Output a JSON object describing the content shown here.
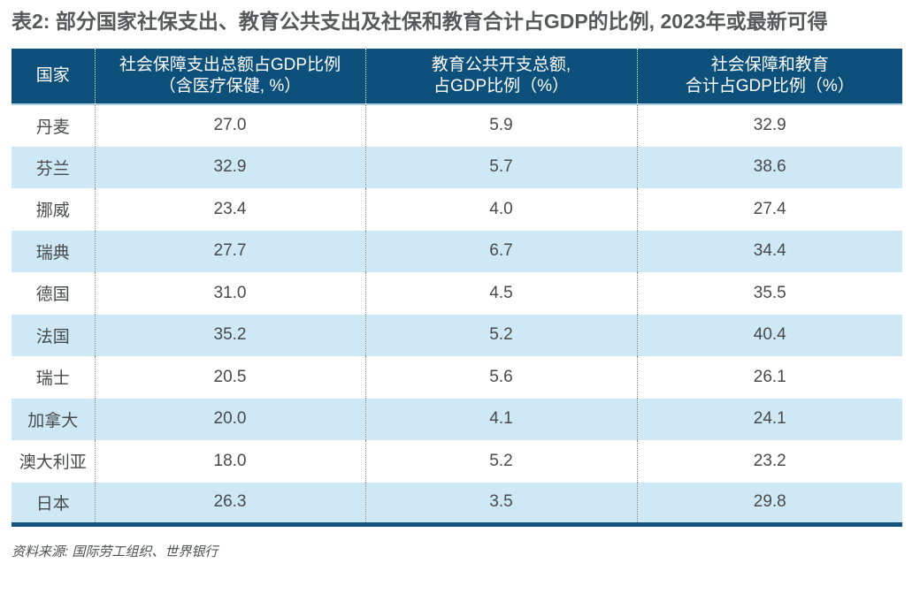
{
  "title": "表2: 部分国家社保支出、教育公共支出及社保和教育合计占GDP的比例, 2023年或最新可得",
  "source_note": "资料来源: 国际劳工组织、世界银行",
  "colors": {
    "header_bg": "#0E507C",
    "header_text": "#FFFFFF",
    "row_alt_bg": "#CEE9F5",
    "row_bg": "#FFFFFF",
    "table_bottom_border": "#15537F",
    "header_bottom_line": "#AFCFE1",
    "title_text": "#57585A",
    "body_text": "#48494B",
    "source_text": "#4E4F51",
    "divider_dotted": "#8C8C8C"
  },
  "table": {
    "headers": [
      {
        "line1": "国家",
        "line2": ""
      },
      {
        "line1": "社会保障支出总额占GDP比例",
        "line2": "（含医疗保健, %）"
      },
      {
        "line1": "教育公共开支总额,",
        "line2": "占GDP比例（%）"
      },
      {
        "line1": "社会保障和教育",
        "line2": "合计占GDP比例（%）"
      }
    ],
    "rows": [
      {
        "country": "丹麦",
        "v1": "27.0",
        "v2": "5.9",
        "v3": "32.9"
      },
      {
        "country": "芬兰",
        "v1": "32.9",
        "v2": "5.7",
        "v3": "38.6"
      },
      {
        "country": "挪威",
        "v1": "23.4",
        "v2": "4.0",
        "v3": "27.4"
      },
      {
        "country": "瑞典",
        "v1": "27.7",
        "v2": "6.7",
        "v3": "34.4"
      },
      {
        "country": "德国",
        "v1": "31.0",
        "v2": "4.5",
        "v3": "35.5"
      },
      {
        "country": "法国",
        "v1": "35.2",
        "v2": "5.2",
        "v3": "40.4"
      },
      {
        "country": "瑞士",
        "v1": "20.5",
        "v2": "5.6",
        "v3": "26.1"
      },
      {
        "country": "加拿大",
        "v1": "20.0",
        "v2": "4.1",
        "v3": "24.1"
      },
      {
        "country": "澳大利亚",
        "v1": "18.0",
        "v2": "5.2",
        "v3": "23.2"
      },
      {
        "country": "日本",
        "v1": "26.3",
        "v2": "3.5",
        "v3": "29.8"
      }
    ]
  },
  "chart_data": {
    "type": "table",
    "title": "表2: 部分国家社保支出、教育公共支出及社保和教育合计占GDP的比例, 2023年或最新可得",
    "columns": [
      "国家",
      "社会保障支出总额占GDP比例（含医疗保健, %）",
      "教育公共开支总额, 占GDP比例（%）",
      "社会保障和教育合计占GDP比例（%）"
    ],
    "rows": [
      [
        "丹麦",
        27.0,
        5.9,
        32.9
      ],
      [
        "芬兰",
        32.9,
        5.7,
        38.6
      ],
      [
        "挪威",
        23.4,
        4.0,
        27.4
      ],
      [
        "瑞典",
        27.7,
        6.7,
        34.4
      ],
      [
        "德国",
        31.0,
        4.5,
        35.5
      ],
      [
        "法国",
        35.2,
        5.2,
        40.4
      ],
      [
        "瑞士",
        20.5,
        5.6,
        26.1
      ],
      [
        "加拿大",
        20.0,
        4.1,
        24.1
      ],
      [
        "澳大利亚",
        18.0,
        5.2,
        23.2
      ],
      [
        "日本",
        26.3,
        3.5,
        29.8
      ]
    ],
    "source": "资料来源: 国际劳工组织、世界银行",
    "layout": {
      "striped_rows": true,
      "stripe_start": "row2",
      "header_style": "dark-blue",
      "column_dividers": "dotted"
    }
  }
}
